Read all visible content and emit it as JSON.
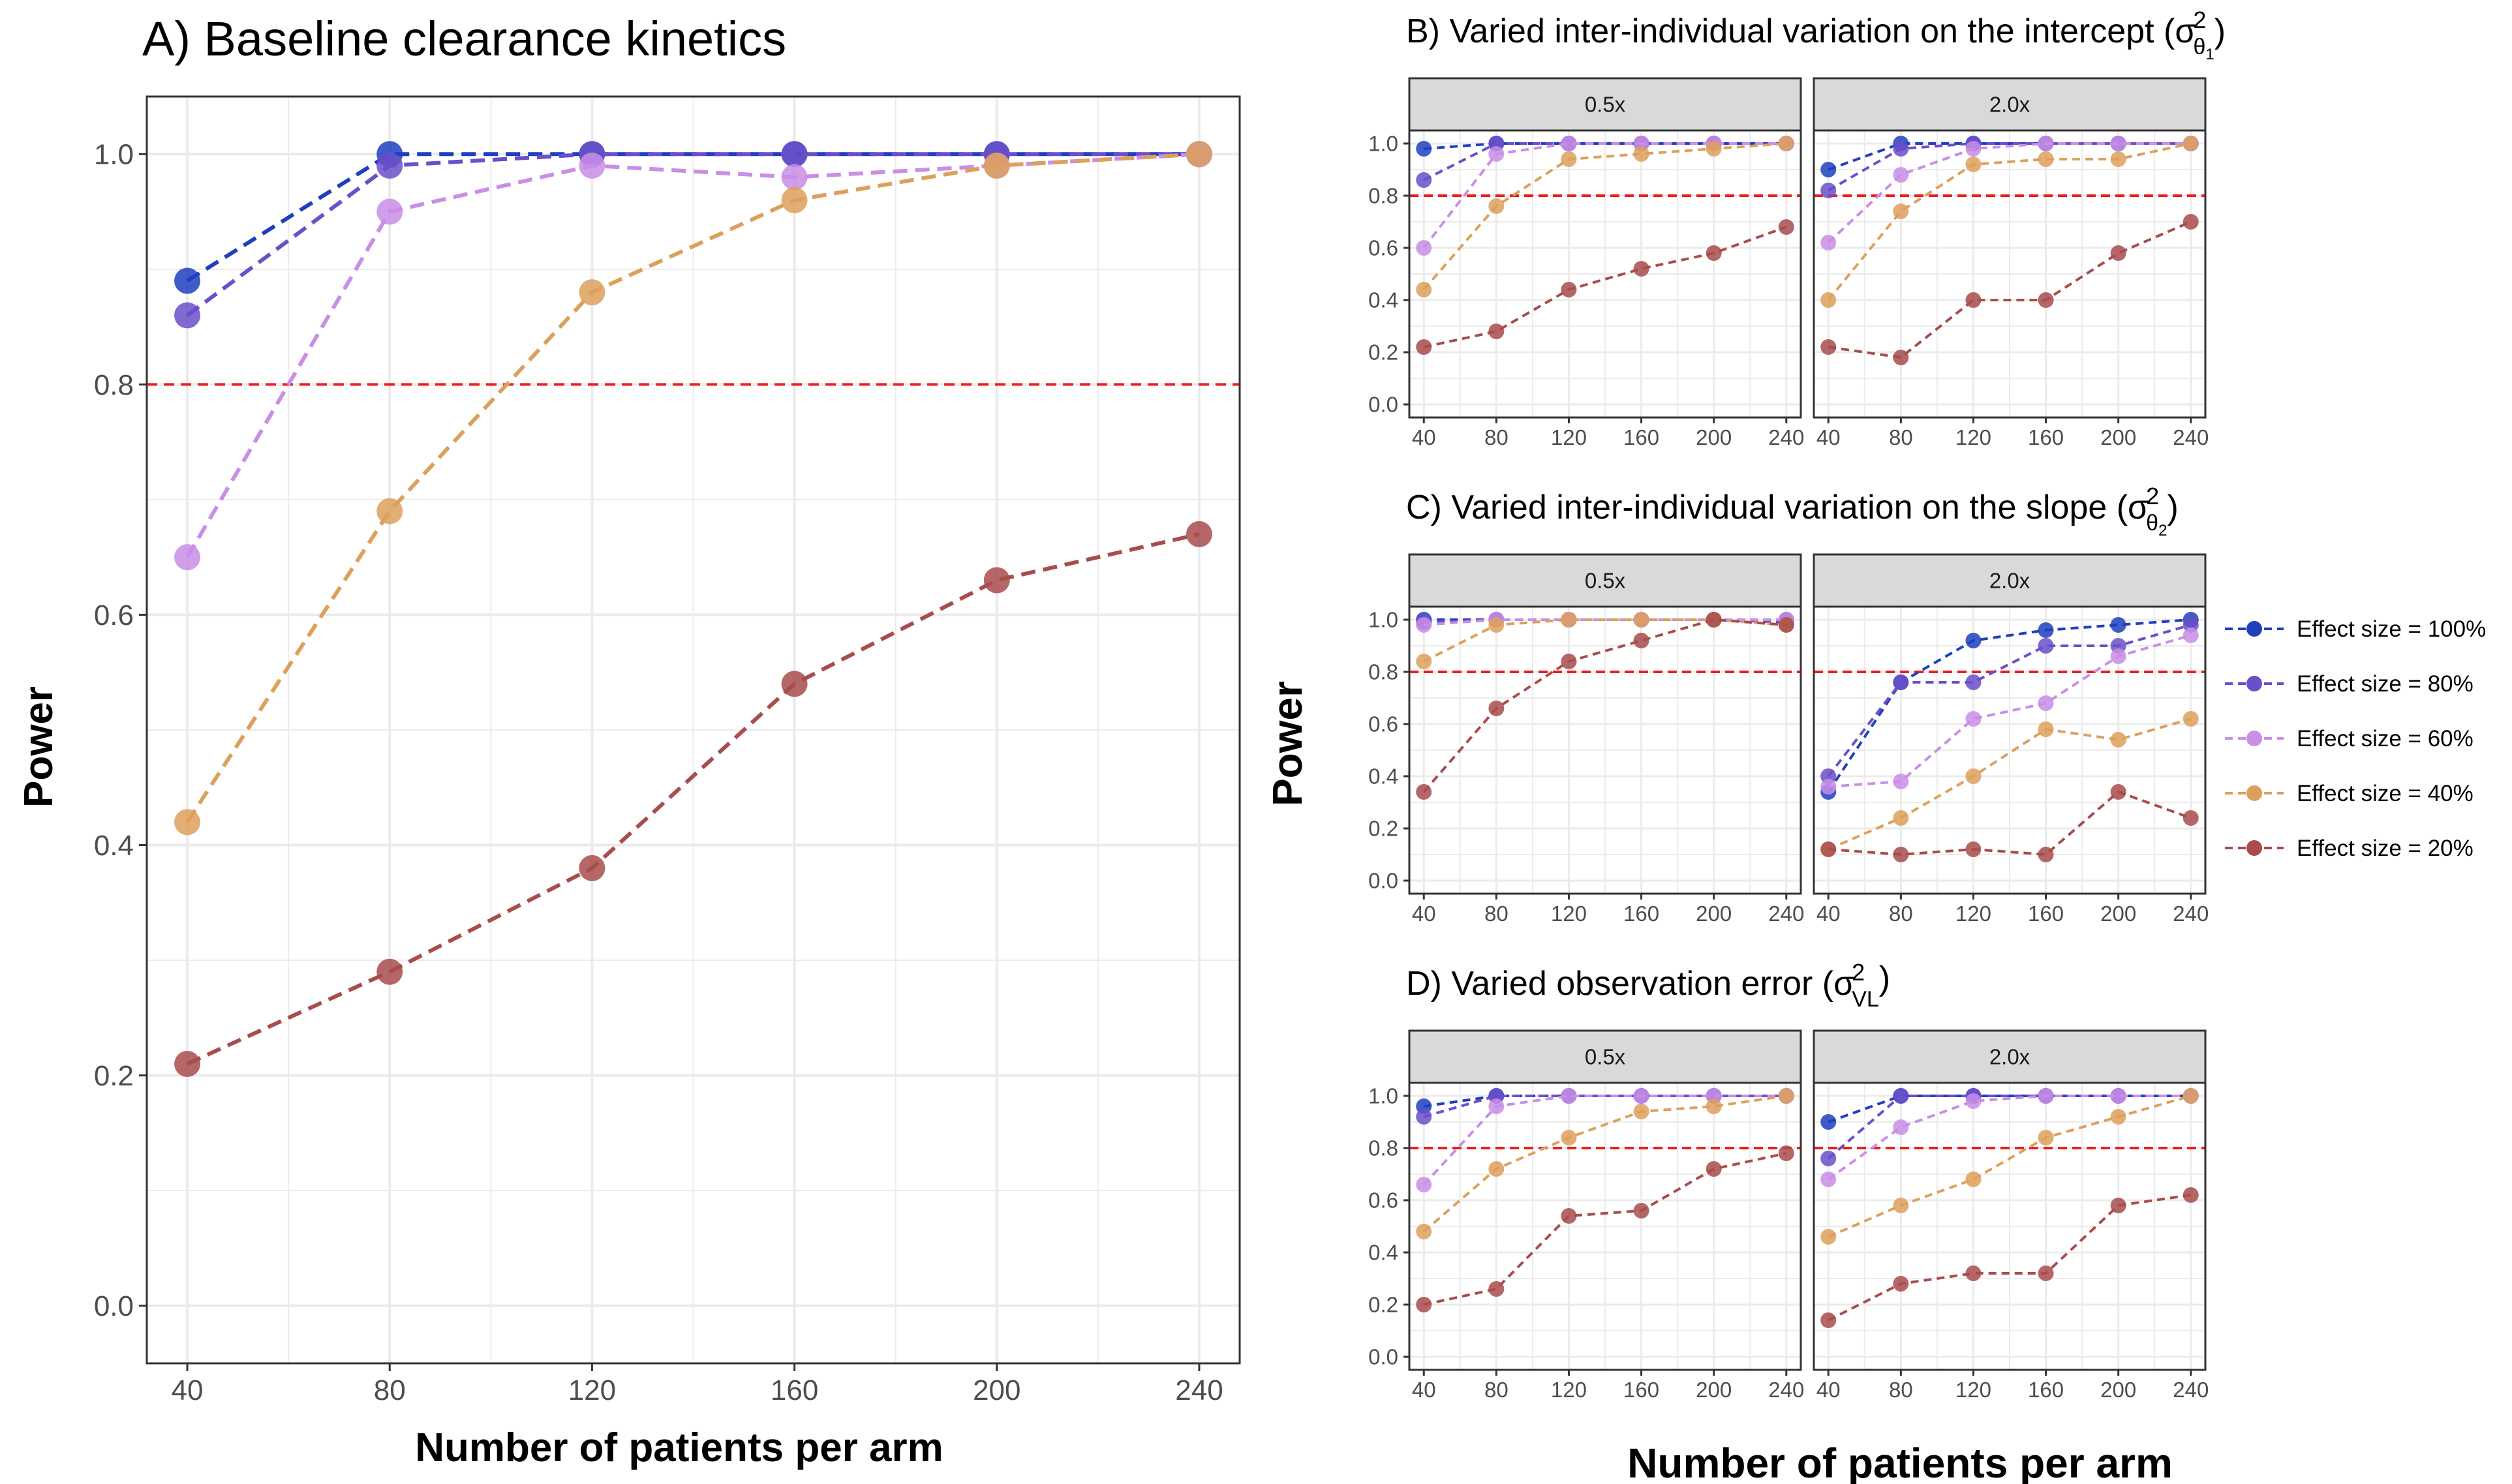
{
  "figure": {
    "shared_ylabel": "Power",
    "shared_xlabel": "Number of patients per arm"
  },
  "colors": {
    "es100": "#1f3fbf",
    "es80": "#6a4fc9",
    "es60": "#c98ee6",
    "es40": "#dda05c",
    "es20": "#a84c4c",
    "threshold": "#ee1c1c",
    "strip_bg": "#d9d9d9",
    "grid": "#ebebeb"
  },
  "legend": {
    "entries": [
      {
        "label": "Effect size = 100%",
        "color_key": "es100"
      },
      {
        "label": "Effect size = 80%",
        "color_key": "es80"
      },
      {
        "label": "Effect size = 60%",
        "color_key": "es60"
      },
      {
        "label": "Effect size = 40%",
        "color_key": "es40"
      },
      {
        "label": "Effect size = 20%",
        "color_key": "es20"
      }
    ]
  },
  "chart_data": [
    {
      "id": "A",
      "type": "line",
      "title": "A) Baseline clearance kinetics",
      "xlabel": "Number of patients per arm",
      "ylabel": "Power",
      "x": [
        40,
        80,
        120,
        160,
        200,
        240
      ],
      "xticks": [
        40,
        80,
        120,
        160,
        200,
        240
      ],
      "yticks": [
        "0.0",
        "0.2",
        "0.4",
        "0.6",
        "0.8",
        "1.0"
      ],
      "xlim": [
        32,
        248
      ],
      "ylim": [
        -0.05,
        1.05
      ],
      "reference_line": 0.8,
      "grid": true,
      "series": [
        {
          "name": "Effect size = 100%",
          "color_key": "es100",
          "values": [
            0.89,
            1.0,
            1.0,
            1.0,
            1.0,
            1.0
          ]
        },
        {
          "name": "Effect size = 80%",
          "color_key": "es80",
          "values": [
            0.86,
            0.99,
            1.0,
            1.0,
            1.0,
            1.0
          ]
        },
        {
          "name": "Effect size = 60%",
          "color_key": "es60",
          "values": [
            0.65,
            0.95,
            0.99,
            0.98,
            0.99,
            1.0
          ]
        },
        {
          "name": "Effect size = 40%",
          "color_key": "es40",
          "values": [
            0.42,
            0.69,
            0.88,
            0.96,
            0.99,
            1.0
          ]
        },
        {
          "name": "Effect size = 20%",
          "color_key": "es20",
          "values": [
            0.21,
            0.29,
            0.38,
            0.54,
            0.63,
            0.67
          ]
        }
      ]
    },
    {
      "id": "B",
      "type": "line",
      "title": "B) Varied inter-individual variation on the intercept (",
      "title_symbol": "σ",
      "title_sup": "2",
      "title_sub": "θ",
      "title_subsub": "1",
      "title_end": ")",
      "x": [
        40,
        80,
        120,
        160,
        200,
        240
      ],
      "xticks": [
        40,
        80,
        120,
        160,
        200,
        240
      ],
      "yticks": [
        "0.0",
        "0.2",
        "0.4",
        "0.6",
        "0.8",
        "1.0"
      ],
      "xlim": [
        32,
        248
      ],
      "ylim": [
        -0.05,
        1.05
      ],
      "reference_line": 0.8,
      "facets": [
        {
          "strip": "0.5x",
          "series": [
            {
              "color_key": "es100",
              "values": [
                0.98,
                1.0,
                1.0,
                1.0,
                1.0,
                1.0
              ]
            },
            {
              "color_key": "es80",
              "values": [
                0.86,
                1.0,
                1.0,
                1.0,
                1.0,
                1.0
              ]
            },
            {
              "color_key": "es60",
              "values": [
                0.6,
                0.96,
                1.0,
                1.0,
                1.0,
                1.0
              ]
            },
            {
              "color_key": "es40",
              "values": [
                0.44,
                0.76,
                0.94,
                0.96,
                0.98,
                1.0
              ]
            },
            {
              "color_key": "es20",
              "values": [
                0.22,
                0.28,
                0.44,
                0.52,
                0.58,
                0.68
              ]
            }
          ]
        },
        {
          "strip": "2.0x",
          "series": [
            {
              "color_key": "es100",
              "values": [
                0.9,
                1.0,
                1.0,
                1.0,
                1.0,
                1.0
              ]
            },
            {
              "color_key": "es80",
              "values": [
                0.82,
                0.98,
                1.0,
                1.0,
                1.0,
                1.0
              ]
            },
            {
              "color_key": "es60",
              "values": [
                0.62,
                0.88,
                0.98,
                1.0,
                1.0,
                1.0
              ]
            },
            {
              "color_key": "es40",
              "values": [
                0.4,
                0.74,
                0.92,
                0.94,
                0.94,
                1.0
              ]
            },
            {
              "color_key": "es20",
              "values": [
                0.22,
                0.18,
                0.4,
                0.4,
                0.58,
                0.7
              ]
            }
          ]
        }
      ]
    },
    {
      "id": "C",
      "type": "line",
      "title": "C) Varied inter-individual variation on the slope (",
      "title_symbol": "σ",
      "title_sup": "2",
      "title_sub": "θ",
      "title_subsub": "2",
      "title_end": ")",
      "x": [
        40,
        80,
        120,
        160,
        200,
        240
      ],
      "xticks": [
        40,
        80,
        120,
        160,
        200,
        240
      ],
      "yticks": [
        "0.0",
        "0.2",
        "0.4",
        "0.6",
        "0.8",
        "1.0"
      ],
      "xlim": [
        32,
        248
      ],
      "ylim": [
        -0.05,
        1.05
      ],
      "reference_line": 0.8,
      "facets": [
        {
          "strip": "0.5x",
          "series": [
            {
              "color_key": "es100",
              "values": [
                1.0,
                1.0,
                1.0,
                1.0,
                1.0,
                1.0
              ]
            },
            {
              "color_key": "es80",
              "values": [
                0.99,
                1.0,
                1.0,
                1.0,
                1.0,
                0.99
              ]
            },
            {
              "color_key": "es60",
              "values": [
                0.98,
                1.0,
                1.0,
                1.0,
                1.0,
                1.0
              ]
            },
            {
              "color_key": "es40",
              "values": [
                0.84,
                0.98,
                1.0,
                1.0,
                1.0,
                0.98
              ]
            },
            {
              "color_key": "es20",
              "values": [
                0.34,
                0.66,
                0.84,
                0.92,
                1.0,
                0.98
              ]
            }
          ]
        },
        {
          "strip": "2.0x",
          "series": [
            {
              "color_key": "es100",
              "values": [
                0.34,
                0.76,
                0.92,
                0.96,
                0.98,
                1.0
              ]
            },
            {
              "color_key": "es80",
              "values": [
                0.4,
                0.76,
                0.76,
                0.9,
                0.9,
                0.98
              ]
            },
            {
              "color_key": "es60",
              "values": [
                0.36,
                0.38,
                0.62,
                0.68,
                0.86,
                0.94
              ]
            },
            {
              "color_key": "es40",
              "values": [
                0.12,
                0.24,
                0.4,
                0.58,
                0.54,
                0.62
              ]
            },
            {
              "color_key": "es20",
              "values": [
                0.12,
                0.1,
                0.12,
                0.1,
                0.34,
                0.24
              ]
            }
          ]
        }
      ]
    },
    {
      "id": "D",
      "type": "line",
      "title": "D) Varied observation error (",
      "title_symbol": "σ",
      "title_sup": "2",
      "title_sub": "VL",
      "title_subsub": "",
      "title_end": ")",
      "x": [
        40,
        80,
        120,
        160,
        200,
        240
      ],
      "xticks": [
        40,
        80,
        120,
        160,
        200,
        240
      ],
      "yticks": [
        "0.0",
        "0.2",
        "0.4",
        "0.6",
        "0.8",
        "1.0"
      ],
      "xlim": [
        32,
        248
      ],
      "ylim": [
        -0.05,
        1.05
      ],
      "reference_line": 0.8,
      "facets": [
        {
          "strip": "0.5x",
          "series": [
            {
              "color_key": "es100",
              "values": [
                0.96,
                1.0,
                1.0,
                1.0,
                1.0,
                1.0
              ]
            },
            {
              "color_key": "es80",
              "values": [
                0.92,
                1.0,
                1.0,
                1.0,
                1.0,
                1.0
              ]
            },
            {
              "color_key": "es60",
              "values": [
                0.66,
                0.96,
                1.0,
                1.0,
                1.0,
                1.0
              ]
            },
            {
              "color_key": "es40",
              "values": [
                0.48,
                0.72,
                0.84,
                0.94,
                0.96,
                1.0
              ]
            },
            {
              "color_key": "es20",
              "values": [
                0.2,
                0.26,
                0.54,
                0.56,
                0.72,
                0.78
              ]
            }
          ]
        },
        {
          "strip": "2.0x",
          "series": [
            {
              "color_key": "es100",
              "values": [
                0.9,
                1.0,
                1.0,
                1.0,
                1.0,
                1.0
              ]
            },
            {
              "color_key": "es80",
              "values": [
                0.76,
                1.0,
                1.0,
                1.0,
                1.0,
                1.0
              ]
            },
            {
              "color_key": "es60",
              "values": [
                0.68,
                0.88,
                0.98,
                1.0,
                1.0,
                1.0
              ]
            },
            {
              "color_key": "es40",
              "values": [
                0.46,
                0.58,
                0.68,
                0.84,
                0.92,
                1.0
              ]
            },
            {
              "color_key": "es20",
              "values": [
                0.14,
                0.28,
                0.32,
                0.32,
                0.58,
                0.62
              ]
            }
          ]
        }
      ]
    }
  ]
}
